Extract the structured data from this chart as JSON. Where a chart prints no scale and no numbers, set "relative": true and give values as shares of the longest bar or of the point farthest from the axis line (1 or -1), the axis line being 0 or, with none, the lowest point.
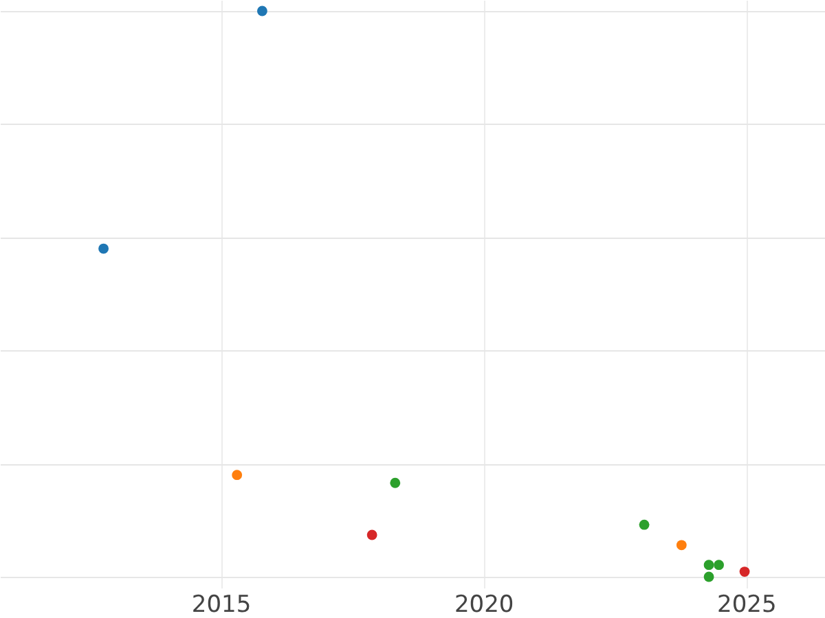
{
  "chart_data": {
    "type": "scatter",
    "relative": true,
    "xlim": [
      2010.8,
      2026.5
    ],
    "xticks": [
      2015,
      2020,
      2025
    ],
    "grid": true,
    "marker": "circle",
    "series": [
      {
        "color": "#1f77b4",
        "x": [
          2012.77,
          2015.79
        ],
        "values": [
          0.58,
          1.0
        ]
      },
      {
        "color": "#ff7f0e",
        "x": [
          2015.31,
          2023.77
        ],
        "values": [
          0.18,
          0.056
        ]
      },
      {
        "color": "#2ca02c",
        "x": [
          2018.32,
          2023.06,
          2024.29,
          2024.48,
          2024.29
        ],
        "values": [
          0.166,
          0.092,
          0.021,
          0.021,
          0
        ]
      },
      {
        "color": "#d62728",
        "x": [
          2017.88,
          2024.97
        ],
        "values": [
          0.074,
          0.009
        ]
      }
    ]
  }
}
